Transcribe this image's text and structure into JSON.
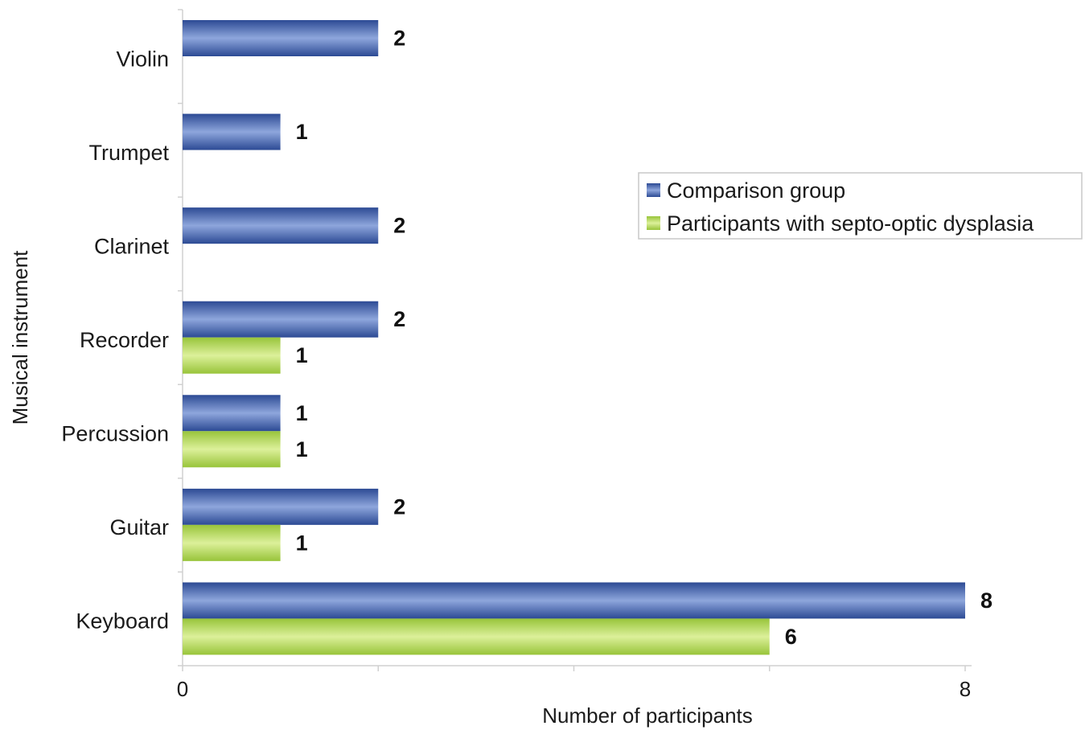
{
  "chart_data": {
    "type": "bar",
    "orientation": "horizontal",
    "title": "",
    "xlabel": "Number of participants",
    "ylabel": "Musical instrument",
    "xlim": [
      0,
      8
    ],
    "x_tick_labels": [
      "0",
      "8"
    ],
    "grid": false,
    "legend_position": "right",
    "categories": [
      "Violin",
      "Trumpet",
      "Clarinet",
      "Recorder",
      "Percussion",
      "Guitar",
      "Keyboard"
    ],
    "series": [
      {
        "name": "Comparison group",
        "color": "#3a5ba8",
        "values": [
          2,
          1,
          2,
          2,
          1,
          2,
          8
        ]
      },
      {
        "name": "Participants with septo-optic dysplasia",
        "color": "#a9d44a",
        "values": [
          null,
          null,
          null,
          1,
          1,
          1,
          6
        ]
      }
    ]
  }
}
